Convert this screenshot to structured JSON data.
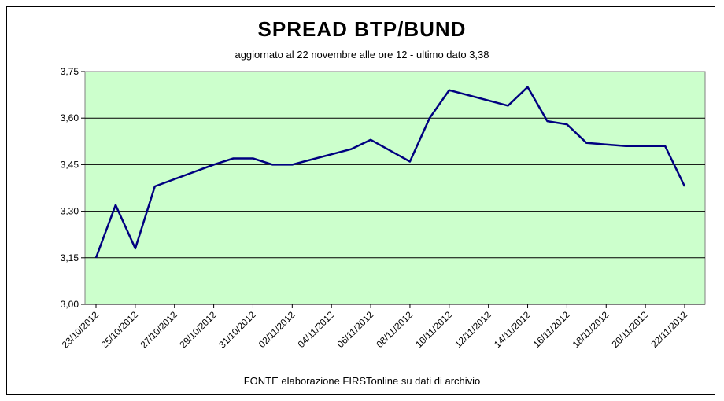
{
  "chart_data": {
    "type": "line",
    "title": "SPREAD  BTP/BUND",
    "subtitle": "aggiornato al 22 novembre alle ore 12 - ultimo dato 3,38",
    "source": "FONTE elaborazione FIRSTonline su dati di archivio",
    "xlabel": "",
    "ylabel": "",
    "ylim": [
      3.0,
      3.75
    ],
    "yticks": [
      "3,00",
      "3,15",
      "3,30",
      "3,45",
      "3,60",
      "3,75"
    ],
    "ytick_values": [
      3.0,
      3.15,
      3.3,
      3.45,
      3.6,
      3.75
    ],
    "xticks": [
      "23/10/2012",
      "25/10/2012",
      "27/10/2012",
      "29/10/2012",
      "31/10/2012",
      "02/11/2012",
      "04/11/2012",
      "06/11/2012",
      "08/11/2012",
      "10/11/2012",
      "12/11/2012",
      "14/11/2012",
      "16/11/2012",
      "18/11/2012",
      "20/11/2012",
      "22/11/2012"
    ],
    "grid": true,
    "plot_color": "#ccffcc",
    "line_color": "#000080",
    "series": [
      {
        "values": [
          {
            "x": "23/10/2012",
            "y": 3.15
          },
          {
            "x": "24/10/2012",
            "y": 3.32
          },
          {
            "x": "25/10/2012",
            "y": 3.18
          },
          {
            "x": "26/10/2012",
            "y": 3.38
          },
          {
            "x": "29/10/2012",
            "y": 3.45
          },
          {
            "x": "30/10/2012",
            "y": 3.47
          },
          {
            "x": "31/10/2012",
            "y": 3.47
          },
          {
            "x": "01/11/2012",
            "y": 3.45
          },
          {
            "x": "02/11/2012",
            "y": 3.45
          },
          {
            "x": "05/11/2012",
            "y": 3.5
          },
          {
            "x": "06/11/2012",
            "y": 3.53
          },
          {
            "x": "08/11/2012",
            "y": 3.46
          },
          {
            "x": "09/11/2012",
            "y": 3.6
          },
          {
            "x": "10/11/2012",
            "y": 3.69
          },
          {
            "x": "13/11/2012",
            "y": 3.64
          },
          {
            "x": "14/11/2012",
            "y": 3.7
          },
          {
            "x": "15/11/2012",
            "y": 3.59
          },
          {
            "x": "16/11/2012",
            "y": 3.58
          },
          {
            "x": "17/11/2012",
            "y": 3.52
          },
          {
            "x": "19/11/2012",
            "y": 3.51
          },
          {
            "x": "20/11/2012",
            "y": 3.51
          },
          {
            "x": "21/11/2012",
            "y": 3.51
          },
          {
            "x": "22/11/2012",
            "y": 3.38
          }
        ]
      }
    ]
  }
}
